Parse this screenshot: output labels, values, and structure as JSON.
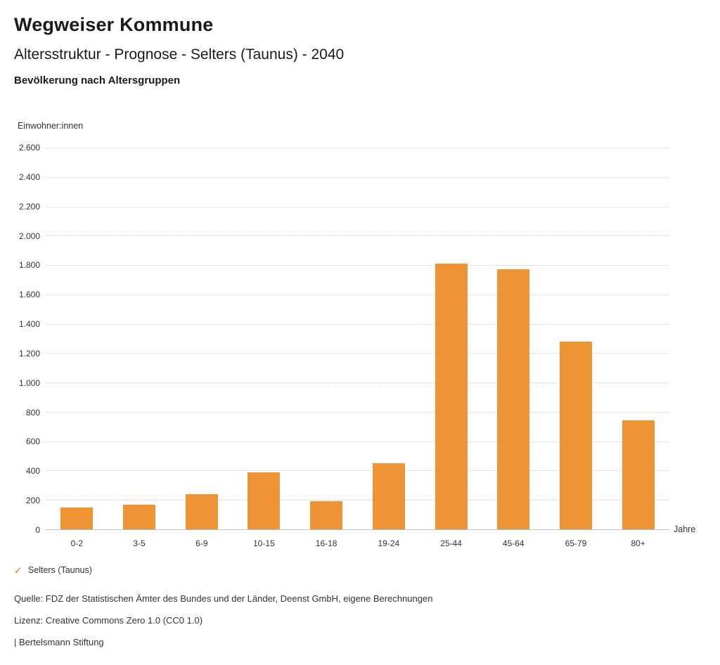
{
  "header": {
    "title": "Wegweiser Kommune",
    "subtitle": "Altersstruktur - Prognose - Selters (Taunus) - 2040",
    "section": "Bevölkerung nach Altersgruppen"
  },
  "chart_data": {
    "type": "bar",
    "title": "Bevölkerung nach Altersgruppen",
    "ylabel": "Einwohner:innen",
    "xlabel": "Jahre",
    "categories": [
      "0-2",
      "3-5",
      "6-9",
      "10-15",
      "16-18",
      "19-24",
      "25-44",
      "45-64",
      "65-79",
      "80+"
    ],
    "series": [
      {
        "name": "Selters (Taunus)",
        "values": [
          150,
          170,
          240,
          390,
          190,
          450,
          1810,
          1770,
          1280,
          740
        ]
      }
    ],
    "ylim": [
      0,
      2600
    ],
    "ytick_step": 200,
    "ytick_labels": [
      "0",
      "200",
      "400",
      "600",
      "800",
      "1.000",
      "1.200",
      "1.400",
      "1.600",
      "1.800",
      "2.000",
      "2.200",
      "2.400",
      "2.600"
    ],
    "grid": "horizontal-dotted",
    "legend_position": "bottom-left",
    "bar_color": "#ef9435"
  },
  "legend": {
    "marker": "✓",
    "label": "Selters (Taunus)",
    "color": "#ef9435"
  },
  "footer": {
    "source": "Quelle: FDZ der Statistischen Ämter des Bundes und der Länder, Deenst GmbH, eigene Berechnungen",
    "license": "Lizenz: Creative Commons Zero 1.0 (CC0 1.0)",
    "attribution": "| Bertelsmann Stiftung"
  }
}
